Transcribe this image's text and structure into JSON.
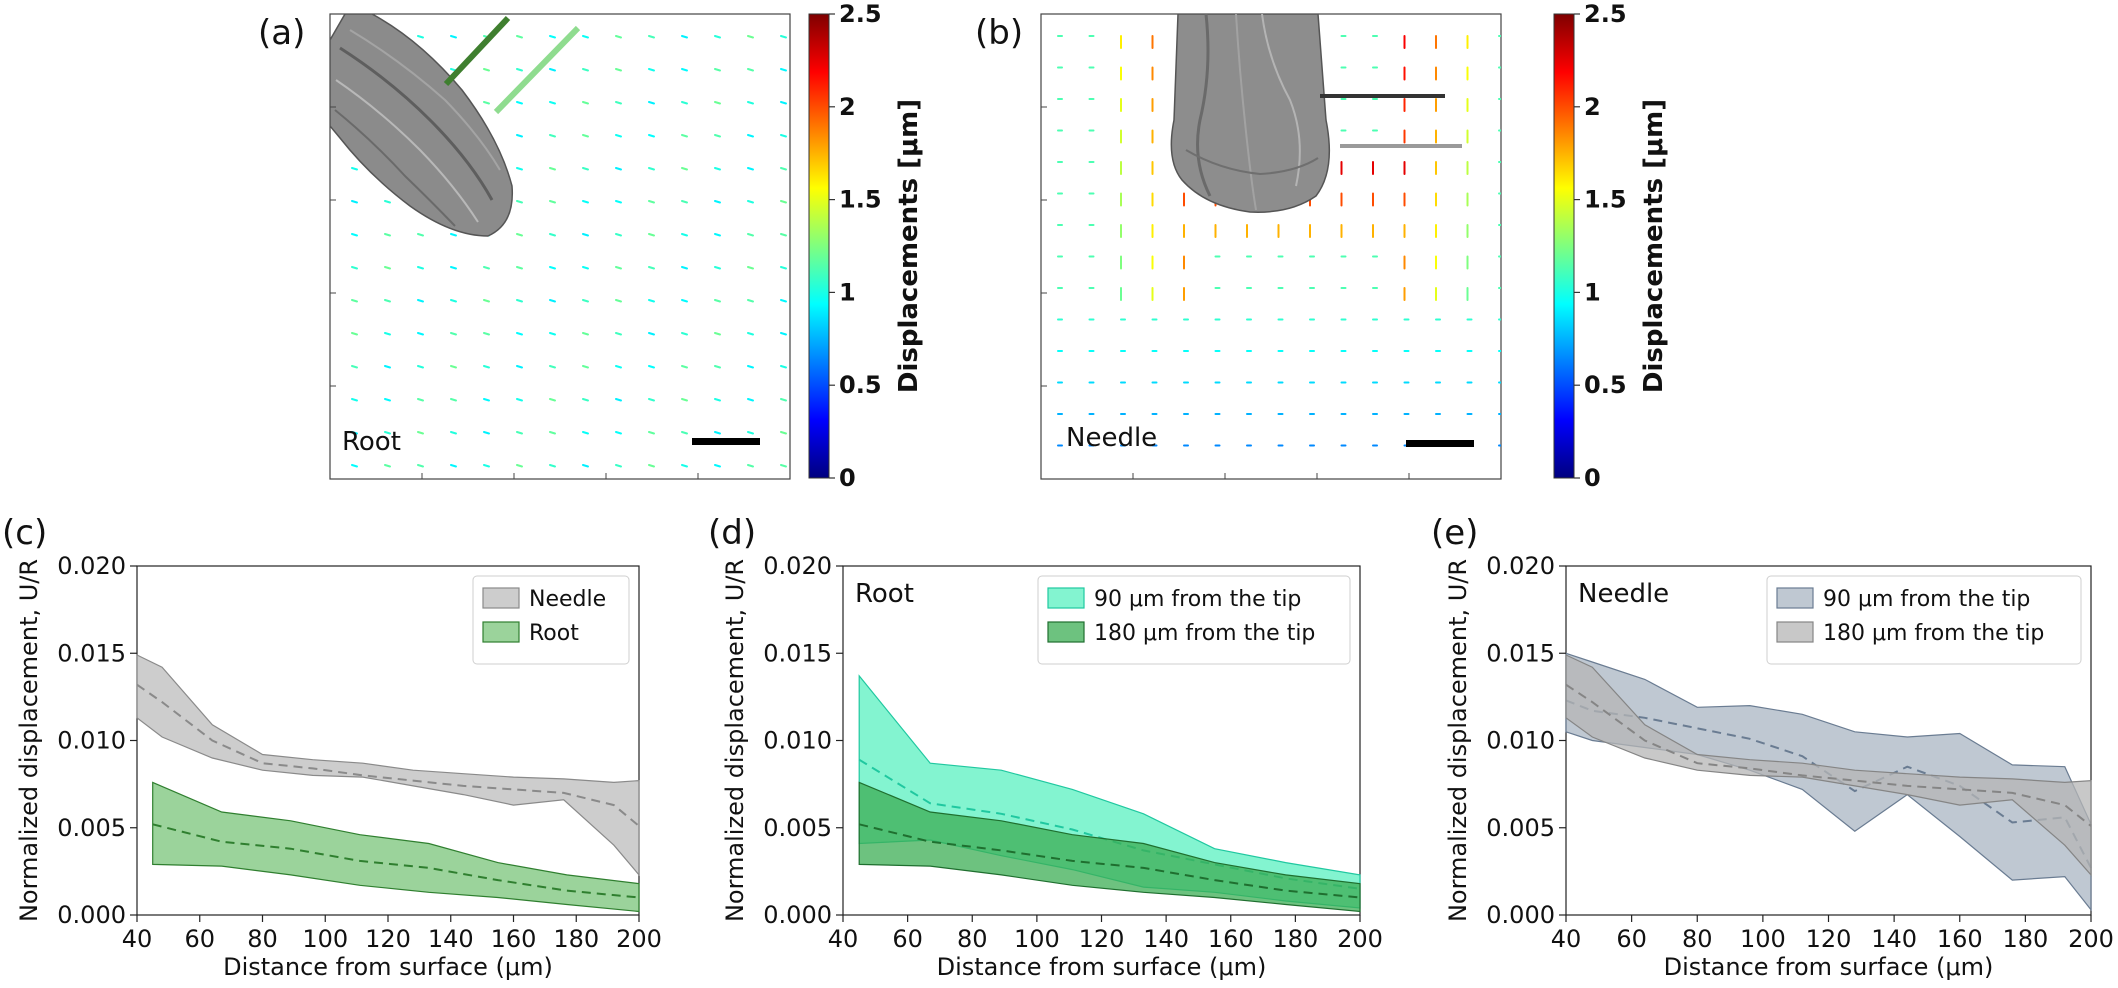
{
  "colorbar": {
    "ticks": [
      "0",
      "0.5",
      "1",
      "1.5",
      "2",
      "2.5"
    ],
    "min": 0,
    "max": 2.5,
    "label": "Displacements [μm]",
    "colormap": [
      "#00007f",
      "#0000ff",
      "#007fff",
      "#00ffff",
      "#7fff7f",
      "#ffff00",
      "#ff7f00",
      "#ff0000",
      "#7f0000"
    ]
  },
  "panels_image": [
    {
      "letter": "(a)",
      "label": "Root",
      "tip_marker_colors": [
        "#3f7f2f",
        "#8fdc8f"
      ]
    },
    {
      "letter": "(b)",
      "label": "Needle",
      "tip_marker_colors": [
        "#333333",
        "#9a9a9a"
      ]
    }
  ],
  "chart_data": [
    {
      "type": "area",
      "letter": "(c)",
      "title": "",
      "xlabel": "Distance from surface (μm)",
      "ylabel": "Normalized displacement, U/R",
      "xlim": [
        40,
        200
      ],
      "ylim": [
        0,
        0.02
      ],
      "xticks": [
        "40",
        "60",
        "80",
        "100",
        "120",
        "140",
        "160",
        "180",
        "200"
      ],
      "yticks": [
        "0.000",
        "0.005",
        "0.010",
        "0.015",
        "0.020"
      ],
      "legend_position": "top-right",
      "series": [
        {
          "name": "Needle",
          "fill": "#bcbcbc",
          "line": "#8a8a8a",
          "x": [
            40,
            48,
            64,
            80,
            96,
            112,
            128,
            144,
            160,
            176,
            192,
            200
          ],
          "mean": [
            0.0132,
            0.0122,
            0.01,
            0.0087,
            0.0084,
            0.008,
            0.0077,
            0.0074,
            0.0072,
            0.007,
            0.0063,
            0.0051
          ],
          "upper": [
            0.0149,
            0.0142,
            0.0109,
            0.0092,
            0.0089,
            0.0087,
            0.0083,
            0.0081,
            0.0079,
            0.0078,
            0.0076,
            0.0077
          ],
          "lower": [
            0.0113,
            0.0102,
            0.009,
            0.0083,
            0.008,
            0.0079,
            0.0074,
            0.0069,
            0.0063,
            0.0066,
            0.004,
            0.0023
          ]
        },
        {
          "name": "Root",
          "fill": "#79c479",
          "line": "#2f7f2f",
          "x": [
            45,
            67,
            89,
            111,
            133,
            155,
            177,
            200
          ],
          "mean": [
            0.0052,
            0.0042,
            0.0038,
            0.0031,
            0.0027,
            0.002,
            0.0014,
            0.001
          ],
          "upper": [
            0.0076,
            0.0059,
            0.0054,
            0.0046,
            0.0041,
            0.003,
            0.0023,
            0.0018
          ],
          "lower": [
            0.0029,
            0.0028,
            0.0023,
            0.0017,
            0.0013,
            0.001,
            0.0006,
            0.0002
          ]
        }
      ]
    },
    {
      "type": "area",
      "letter": "(d)",
      "title": "",
      "inset_label": "Root",
      "xlabel": "Distance from surface (μm)",
      "ylabel": "Normalized displacement, U/R",
      "xlim": [
        40,
        200
      ],
      "ylim": [
        0,
        0.02
      ],
      "xticks": [
        "40",
        "60",
        "80",
        "100",
        "120",
        "140",
        "160",
        "180",
        "200"
      ],
      "yticks": [
        "0.000",
        "0.005",
        "0.010",
        "0.015",
        "0.020"
      ],
      "legend_position": "top-right",
      "series": [
        {
          "name": "90 μm from the tip",
          "fill": "#5af0c0",
          "line": "#20c8a0",
          "x": [
            45,
            67,
            89,
            111,
            133,
            155,
            177,
            200
          ],
          "mean": [
            0.0089,
            0.0064,
            0.0058,
            0.0049,
            0.0037,
            0.0029,
            0.0021,
            0.0015
          ],
          "upper": [
            0.0137,
            0.0087,
            0.0083,
            0.0072,
            0.0058,
            0.0038,
            0.003,
            0.0023
          ],
          "lower": [
            0.0041,
            0.0043,
            0.0034,
            0.0026,
            0.0016,
            0.0013,
            0.0008,
            0.0004
          ]
        },
        {
          "name": "180 μm from the tip",
          "fill": "#3cae54",
          "line": "#1f6f2f",
          "x": [
            45,
            67,
            89,
            111,
            133,
            155,
            177,
            200
          ],
          "mean": [
            0.0052,
            0.0042,
            0.0037,
            0.0031,
            0.0027,
            0.002,
            0.0014,
            0.001
          ],
          "upper": [
            0.0076,
            0.0059,
            0.0054,
            0.0046,
            0.0041,
            0.003,
            0.0023,
            0.0018
          ],
          "lower": [
            0.0029,
            0.0028,
            0.0023,
            0.0017,
            0.0013,
            0.001,
            0.0006,
            0.0002
          ]
        }
      ]
    },
    {
      "type": "area",
      "letter": "(e)",
      "title": "",
      "inset_label": "Needle",
      "xlabel": "Distance from surface (μm)",
      "ylabel": "Normalized displacement, U/R",
      "xlim": [
        40,
        200
      ],
      "ylim": [
        0,
        0.02
      ],
      "xticks": [
        "40",
        "60",
        "80",
        "100",
        "120",
        "140",
        "160",
        "180",
        "200"
      ],
      "yticks": [
        "0.000",
        "0.005",
        "0.010",
        "0.015",
        "0.020"
      ],
      "legend_position": "top-right",
      "series": [
        {
          "name": "90 μm from the tip",
          "fill": "#aab5c3",
          "line": "#6a7c92",
          "x": [
            40,
            48,
            64,
            80,
            96,
            112,
            128,
            144,
            160,
            176,
            192,
            200
          ],
          "mean": [
            0.0123,
            0.0117,
            0.0113,
            0.0107,
            0.0101,
            0.0091,
            0.0071,
            0.0085,
            0.0074,
            0.0053,
            0.0056,
            0.0027
          ],
          "upper": [
            0.015,
            0.0145,
            0.0135,
            0.0119,
            0.012,
            0.0115,
            0.0105,
            0.0102,
            0.0104,
            0.0086,
            0.0085,
            0.0052
          ],
          "lower": [
            0.0105,
            0.01,
            0.0096,
            0.0092,
            0.0083,
            0.0072,
            0.0048,
            0.0069,
            0.0045,
            0.002,
            0.0022,
            0.0003
          ]
        },
        {
          "name": "180 μm from the tip",
          "fill": "#b6b6b6",
          "line": "#858585",
          "x": [
            40,
            48,
            64,
            80,
            96,
            112,
            128,
            144,
            160,
            176,
            192,
            200
          ],
          "mean": [
            0.0132,
            0.0122,
            0.01,
            0.0087,
            0.0084,
            0.008,
            0.0077,
            0.0074,
            0.0072,
            0.007,
            0.0063,
            0.0051
          ],
          "upper": [
            0.0149,
            0.0142,
            0.0109,
            0.0092,
            0.0089,
            0.0087,
            0.0083,
            0.0081,
            0.0079,
            0.0078,
            0.0076,
            0.0077
          ],
          "lower": [
            0.0113,
            0.0102,
            0.009,
            0.0083,
            0.008,
            0.0079,
            0.0074,
            0.0069,
            0.0063,
            0.0066,
            0.004,
            0.0023
          ]
        }
      ]
    }
  ]
}
